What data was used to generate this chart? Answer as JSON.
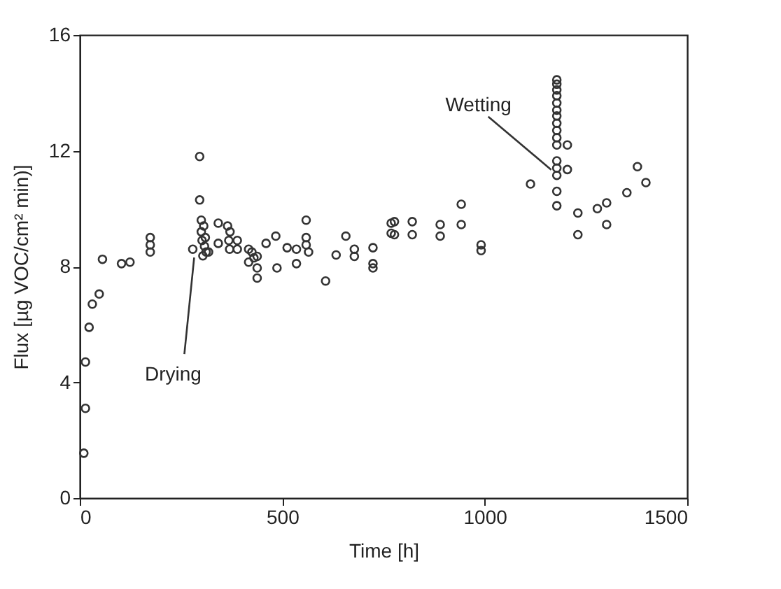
{
  "chart_data": {
    "type": "scatter",
    "xlabel": "Time [h]",
    "ylabel": "Flux [µg VOC/cm² min)]",
    "xlim": [
      0,
      1500
    ],
    "xticks": [
      0,
      500,
      1000,
      1500
    ],
    "ylim": [
      0,
      16
    ],
    "yticks": [
      0,
      4,
      8,
      12,
      16
    ],
    "grid": false,
    "marker": "circle",
    "annotations": [
      {
        "text": "Drying",
        "x": 279,
        "y": 8.6
      },
      {
        "text": "Wetting",
        "x": 1178,
        "y": 11.15
      }
    ],
    "series": [
      {
        "color": "#333333",
        "x": [
          10,
          14,
          14,
          23,
          31,
          48,
          56,
          103,
          124,
          174,
          174,
          174,
          279,
          296,
          296,
          300,
          300,
          302,
          304,
          306,
          308,
          310,
          312,
          318,
          342,
          342,
          365,
          371,
          368,
          370,
          389,
          389,
          417,
          417,
          425,
          430,
          438,
          438,
          438,
          460,
          484,
          487,
          512,
          535,
          535,
          559,
          559,
          559,
          565,
          607,
          633,
          657,
          678,
          678,
          724,
          724,
          724,
          769,
          769,
          777,
          777,
          821,
          821,
          890,
          890,
          942,
          942,
          991,
          991,
          1113,
          1178,
          1178,
          1178,
          1178,
          1178,
          1178,
          1178,
          1178,
          1178,
          1178,
          1178,
          1178,
          1178,
          1178,
          1178,
          1178,
          1204,
          1204,
          1230,
          1230,
          1278,
          1301,
          1301,
          1351,
          1377,
          1398
        ],
        "values": [
          1.55,
          3.1,
          4.7,
          5.9,
          6.7,
          7.05,
          8.25,
          8.1,
          8.15,
          8.5,
          8.75,
          9.0,
          8.6,
          11.8,
          10.3,
          9.6,
          9.2,
          8.9,
          8.37,
          9.4,
          8.7,
          9.0,
          8.5,
          8.5,
          9.5,
          8.8,
          9.4,
          9.2,
          8.9,
          8.6,
          8.9,
          8.6,
          8.6,
          8.15,
          8.5,
          8.3,
          8.35,
          7.95,
          7.6,
          8.8,
          9.05,
          7.95,
          8.65,
          8.6,
          8.1,
          9.6,
          9.0,
          8.75,
          8.5,
          7.5,
          8.4,
          9.05,
          8.6,
          8.35,
          8.65,
          8.1,
          7.95,
          9.5,
          9.15,
          9.55,
          9.1,
          9.55,
          9.1,
          9.45,
          9.05,
          10.15,
          9.45,
          8.75,
          8.55,
          10.85,
          14.45,
          14.3,
          14.1,
          13.9,
          13.65,
          13.4,
          13.2,
          12.95,
          12.7,
          12.45,
          12.2,
          11.65,
          11.4,
          11.15,
          10.6,
          10.1,
          12.2,
          11.35,
          9.85,
          9.1,
          10,
          10.2,
          9.45,
          10.55,
          11.45,
          10.9
        ]
      }
    ]
  }
}
